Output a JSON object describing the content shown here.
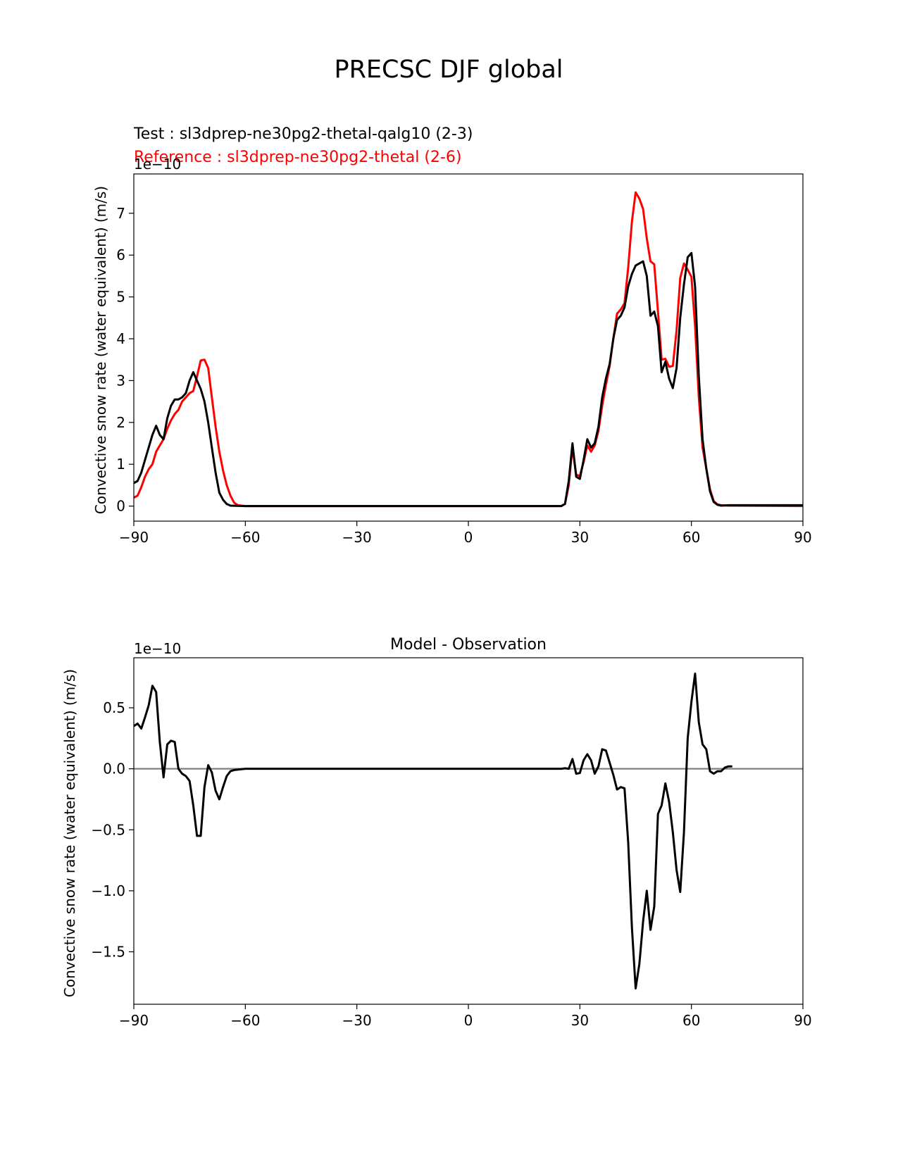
{
  "figure": {
    "title": "PRECSC DJF global"
  },
  "chart_data": [
    {
      "type": "line",
      "title": "",
      "test_label": "Test : sl3dprep-ne30pg2-thetal-qalg10 (2-3)",
      "ref_label": "Reference : sl3dprep-ne30pg2-thetal (2-6)",
      "xlabel": "",
      "ylabel": "Convective snow rate (water equivalent) (m/s)",
      "offset_text": "1e−10",
      "xlim": [
        -90,
        90
      ],
      "ylim": [
        -0.36,
        7.94
      ],
      "xticks": [
        -90,
        -60,
        -30,
        0,
        30,
        60,
        90
      ],
      "xtick_labels": [
        "−90",
        "−60",
        "−30",
        "0",
        "30",
        "60",
        "90"
      ],
      "yticks": [
        0,
        1,
        2,
        3,
        4,
        5,
        6,
        7
      ],
      "ytick_labels": [
        "0",
        "1",
        "2",
        "3",
        "4",
        "5",
        "6",
        "7"
      ],
      "series": [
        {
          "name": "",
          "color": "#ff0000",
          "points": [
            [
              -90,
              0.2
            ],
            [
              -89,
              0.25
            ],
            [
              -88,
              0.45
            ],
            [
              -87,
              0.7
            ],
            [
              -86,
              0.88
            ],
            [
              -85,
              1.0
            ],
            [
              -84,
              1.3
            ],
            [
              -83,
              1.45
            ],
            [
              -82,
              1.6
            ],
            [
              -81,
              1.85
            ],
            [
              -80,
              2.05
            ],
            [
              -79,
              2.2
            ],
            [
              -78,
              2.3
            ],
            [
              -77,
              2.5
            ],
            [
              -76,
              2.6
            ],
            [
              -75,
              2.7
            ],
            [
              -74,
              2.75
            ],
            [
              -73,
              3.1
            ],
            [
              -72,
              3.48
            ],
            [
              -71,
              3.5
            ],
            [
              -70,
              3.3
            ],
            [
              -69,
              2.6
            ],
            [
              -68,
              1.9
            ],
            [
              -67,
              1.3
            ],
            [
              -66,
              0.85
            ],
            [
              -65,
              0.5
            ],
            [
              -64,
              0.25
            ],
            [
              -63,
              0.08
            ],
            [
              -62,
              0.02
            ],
            [
              -60,
              0
            ],
            [
              -30,
              0
            ],
            [
              0,
              0
            ],
            [
              25,
              0
            ],
            [
              26,
              0.05
            ],
            [
              27,
              0.5
            ],
            [
              28,
              1.4
            ],
            [
              29,
              0.75
            ],
            [
              30,
              0.72
            ],
            [
              31,
              1.05
            ],
            [
              32,
              1.45
            ],
            [
              33,
              1.3
            ],
            [
              34,
              1.45
            ],
            [
              35,
              1.8
            ],
            [
              36,
              2.4
            ],
            [
              37,
              2.9
            ],
            [
              38,
              3.35
            ],
            [
              39,
              4.0
            ],
            [
              40,
              4.6
            ],
            [
              41,
              4.7
            ],
            [
              42,
              4.85
            ],
            [
              43,
              5.7
            ],
            [
              44,
              6.8
            ],
            [
              45,
              7.5
            ],
            [
              46,
              7.35
            ],
            [
              47,
              7.1
            ],
            [
              48,
              6.4
            ],
            [
              49,
              5.85
            ],
            [
              50,
              5.78
            ],
            [
              51,
              4.65
            ],
            [
              52,
              3.5
            ],
            [
              53,
              3.52
            ],
            [
              54,
              3.33
            ],
            [
              55,
              3.35
            ],
            [
              56,
              4.2
            ],
            [
              57,
              5.45
            ],
            [
              58,
              5.8
            ],
            [
              59,
              5.65
            ],
            [
              60,
              5.48
            ],
            [
              61,
              4.3
            ],
            [
              62,
              2.6
            ],
            [
              63,
              1.4
            ],
            [
              64,
              0.9
            ],
            [
              65,
              0.4
            ],
            [
              66,
              0.12
            ],
            [
              67,
              0.04
            ],
            [
              68,
              0.02
            ],
            [
              70,
              0.01
            ],
            [
              90,
              0.0
            ]
          ]
        },
        {
          "name": "",
          "color": "#000000",
          "points": [
            [
              -90,
              0.55
            ],
            [
              -89,
              0.6
            ],
            [
              -88,
              0.8
            ],
            [
              -87,
              1.1
            ],
            [
              -86,
              1.4
            ],
            [
              -85,
              1.7
            ],
            [
              -84,
              1.92
            ],
            [
              -83,
              1.7
            ],
            [
              -82,
              1.6
            ],
            [
              -81,
              2.1
            ],
            [
              -80,
              2.4
            ],
            [
              -79,
              2.55
            ],
            [
              -78,
              2.55
            ],
            [
              -77,
              2.6
            ],
            [
              -76,
              2.7
            ],
            [
              -75,
              3.0
            ],
            [
              -74,
              3.2
            ],
            [
              -73,
              3.0
            ],
            [
              -72,
              2.8
            ],
            [
              -71,
              2.5
            ],
            [
              -70,
              2.0
            ],
            [
              -69,
              1.4
            ],
            [
              -68,
              0.8
            ],
            [
              -67,
              0.32
            ],
            [
              -66,
              0.15
            ],
            [
              -65,
              0.05
            ],
            [
              -64,
              0.01
            ],
            [
              -60,
              0
            ],
            [
              -30,
              0
            ],
            [
              0,
              0
            ],
            [
              25,
              0
            ],
            [
              26,
              0.05
            ],
            [
              27,
              0.6
            ],
            [
              28,
              1.5
            ],
            [
              29,
              0.7
            ],
            [
              30,
              0.65
            ],
            [
              31,
              1.1
            ],
            [
              32,
              1.6
            ],
            [
              33,
              1.4
            ],
            [
              34,
              1.5
            ],
            [
              35,
              1.9
            ],
            [
              36,
              2.6
            ],
            [
              37,
              3.05
            ],
            [
              38,
              3.4
            ],
            [
              39,
              4.0
            ],
            [
              40,
              4.45
            ],
            [
              41,
              4.55
            ],
            [
              42,
              4.75
            ],
            [
              43,
              5.25
            ],
            [
              44,
              5.55
            ],
            [
              45,
              5.75
            ],
            [
              46,
              5.8
            ],
            [
              47,
              5.85
            ],
            [
              48,
              5.5
            ],
            [
              49,
              4.55
            ],
            [
              50,
              4.65
            ],
            [
              51,
              4.3
            ],
            [
              52,
              3.2
            ],
            [
              53,
              3.45
            ],
            [
              54,
              3.05
            ],
            [
              55,
              2.82
            ],
            [
              56,
              3.3
            ],
            [
              57,
              4.5
            ],
            [
              58,
              5.3
            ],
            [
              59,
              5.95
            ],
            [
              60,
              6.05
            ],
            [
              61,
              5.25
            ],
            [
              62,
              3.1
            ],
            [
              63,
              1.6
            ],
            [
              64,
              0.9
            ],
            [
              65,
              0.35
            ],
            [
              66,
              0.1
            ],
            [
              67,
              0.03
            ],
            [
              68,
              0.01
            ],
            [
              70,
              0.02
            ],
            [
              90,
              0.02
            ]
          ]
        }
      ]
    },
    {
      "type": "line",
      "title": "Model - Observation",
      "xlabel": "",
      "ylabel": "Convective snow rate (water equivalent) (m/s)",
      "offset_text": "1e−10",
      "xlim": [
        -90,
        90
      ],
      "ylim": [
        -1.93,
        0.91
      ],
      "xticks": [
        -90,
        -60,
        -30,
        0,
        30,
        60,
        90
      ],
      "xtick_labels": [
        "−90",
        "−60",
        "−30",
        "0",
        "30",
        "60",
        "90"
      ],
      "yticks": [
        0.5,
        0.0,
        -0.5,
        -1.0,
        -1.5
      ],
      "ytick_labels": [
        "0.5",
        "0.0",
        "−0.5",
        "−1.0",
        "−1.5"
      ],
      "zero_line": {
        "value": 0,
        "color": "#808080"
      },
      "series": [
        {
          "name": "",
          "color": "#000000",
          "points": [
            [
              -90,
              0.35
            ],
            [
              -89,
              0.37
            ],
            [
              -88,
              0.33
            ],
            [
              -87,
              0.42
            ],
            [
              -86,
              0.52
            ],
            [
              -85,
              0.68
            ],
            [
              -84,
              0.63
            ],
            [
              -83,
              0.22
            ],
            [
              -82,
              -0.07
            ],
            [
              -81,
              0.2
            ],
            [
              -80,
              0.23
            ],
            [
              -79,
              0.22
            ],
            [
              -78,
              0.0
            ],
            [
              -77,
              -0.04
            ],
            [
              -76,
              -0.06
            ],
            [
              -75,
              -0.1
            ],
            [
              -74,
              -0.3
            ],
            [
              -73,
              -0.55
            ],
            [
              -72,
              -0.55
            ],
            [
              -71,
              -0.15
            ],
            [
              -70,
              0.03
            ],
            [
              -69,
              -0.03
            ],
            [
              -68,
              -0.18
            ],
            [
              -67,
              -0.25
            ],
            [
              -66,
              -0.15
            ],
            [
              -65,
              -0.06
            ],
            [
              -64,
              -0.02
            ],
            [
              -63,
              -0.01
            ],
            [
              -60,
              0.0
            ],
            [
              -40,
              0
            ],
            [
              0,
              0
            ],
            [
              25,
              0
            ],
            [
              26,
              0.005
            ],
            [
              27,
              0.0
            ],
            [
              28,
              0.08
            ],
            [
              29,
              -0.04
            ],
            [
              30,
              -0.035
            ],
            [
              31,
              0.07
            ],
            [
              32,
              0.12
            ],
            [
              33,
              0.07
            ],
            [
              34,
              -0.04
            ],
            [
              35,
              0.02
            ],
            [
              36,
              0.16
            ],
            [
              37,
              0.15
            ],
            [
              38,
              0.05
            ],
            [
              39,
              -0.05
            ],
            [
              40,
              -0.17
            ],
            [
              41,
              -0.15
            ],
            [
              42,
              -0.16
            ],
            [
              43,
              -0.6
            ],
            [
              44,
              -1.3
            ],
            [
              45,
              -1.8
            ],
            [
              46,
              -1.6
            ],
            [
              47,
              -1.25
            ],
            [
              48,
              -1.0
            ],
            [
              49,
              -1.32
            ],
            [
              50,
              -1.13
            ],
            [
              51,
              -0.37
            ],
            [
              52,
              -0.3
            ],
            [
              53,
              -0.12
            ],
            [
              54,
              -0.27
            ],
            [
              55,
              -0.52
            ],
            [
              56,
              -0.83
            ],
            [
              57,
              -1.01
            ],
            [
              58,
              -0.52
            ],
            [
              59,
              0.25
            ],
            [
              60,
              0.55
            ],
            [
              61,
              0.78
            ],
            [
              62,
              0.38
            ],
            [
              63,
              0.2
            ],
            [
              64,
              0.16
            ],
            [
              65,
              -0.02
            ],
            [
              66,
              -0.04
            ],
            [
              67,
              -0.02
            ],
            [
              68,
              -0.02
            ],
            [
              69,
              0.01
            ],
            [
              70,
              0.02
            ],
            [
              71,
              0.02
            ]
          ]
        }
      ]
    }
  ]
}
